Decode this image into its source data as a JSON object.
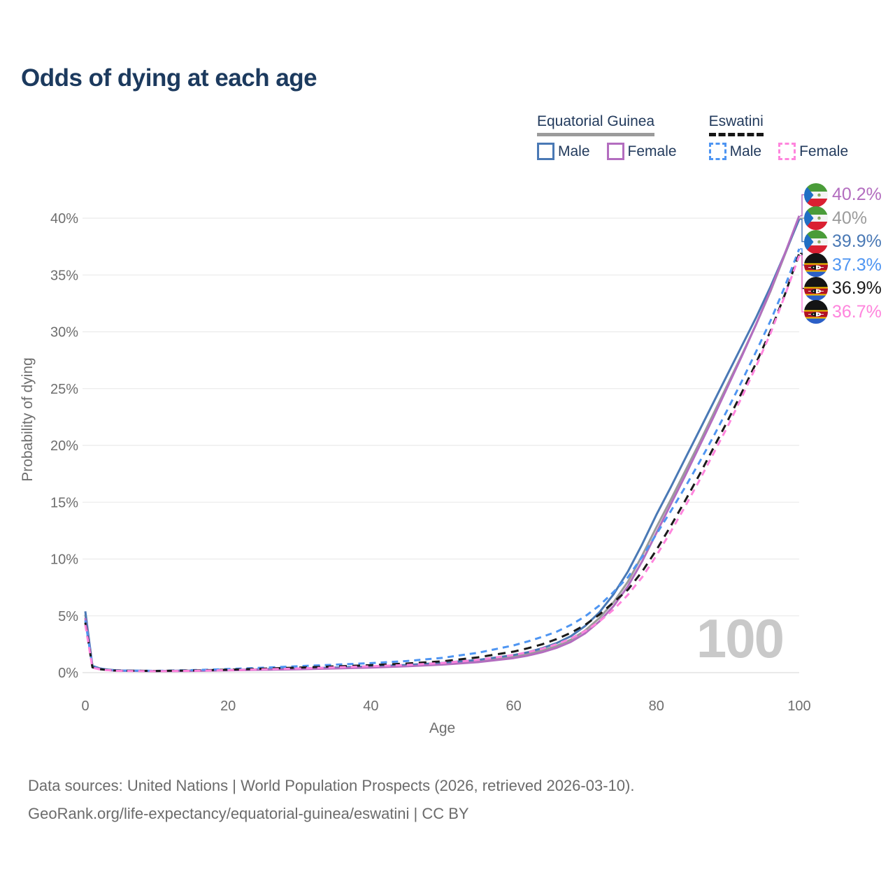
{
  "title": "Odds of dying at each age",
  "legend": {
    "groups": [
      {
        "name": "Equatorial Guinea",
        "line_style": "solid",
        "underline_color": "#9b9b9b",
        "items": [
          {
            "label": "Male",
            "color": "#4a79b5"
          },
          {
            "label": "Female",
            "color": "#b36dbf"
          }
        ]
      },
      {
        "name": "Eswatini",
        "line_style": "dashed",
        "underline_color": "#161616",
        "items": [
          {
            "label": "Male",
            "color": "#4e95f2"
          },
          {
            "label": "Female",
            "color": "#ff85dd"
          }
        ]
      }
    ]
  },
  "watermark": "100",
  "footer": {
    "line1": "Data sources: United Nations | World Population Prospects (2026, retrieved 2026-03-10).",
    "line2": "GeoRank.org/life-expectancy/equatorial-guinea/eswatini | CC BY"
  },
  "chart_data": {
    "type": "line",
    "title": "Odds of dying at each age",
    "xlabel": "Age",
    "ylabel": "Probability of dying",
    "xlim": [
      0,
      100
    ],
    "ylim_percent": [
      0,
      40
    ],
    "xticks": [
      0,
      20,
      40,
      60,
      80,
      100
    ],
    "ytick_values": [
      0,
      5,
      10,
      15,
      20,
      25,
      30,
      35,
      40
    ],
    "ytick_labels": [
      "0%",
      "5%",
      "10%",
      "15%",
      "20%",
      "25%",
      "30%",
      "35%",
      "40%"
    ],
    "grid": "horizontal",
    "legend_position": "top-right",
    "ages": [
      0,
      1,
      2,
      3,
      4,
      5,
      10,
      15,
      20,
      25,
      30,
      35,
      40,
      45,
      50,
      55,
      60,
      62,
      64,
      66,
      68,
      70,
      72,
      74,
      76,
      78,
      80,
      82,
      84,
      86,
      88,
      90,
      92,
      94,
      96,
      98,
      100
    ],
    "series": [
      {
        "key": "equatorial-guinea-female",
        "name": "Equatorial Guinea — Female",
        "country": "GQ",
        "style": "solid",
        "color": "#b36dbf",
        "end_label": "40.2%",
        "values_percent": [
          4.8,
          0.5,
          0.32,
          0.24,
          0.18,
          0.16,
          0.13,
          0.15,
          0.2,
          0.25,
          0.3,
          0.37,
          0.45,
          0.56,
          0.71,
          0.92,
          1.28,
          1.5,
          1.8,
          2.18,
          2.7,
          3.45,
          4.5,
          5.85,
          7.6,
          9.8,
          12.3,
          14.8,
          17.3,
          19.9,
          22.5,
          25.2,
          27.9,
          30.7,
          33.7,
          36.9,
          40.2
        ]
      },
      {
        "key": "equatorial-guinea-both",
        "name": "Equatorial Guinea — Both sexes",
        "country": "GQ",
        "style": "solid",
        "color": "#9b9b9b",
        "end_label": "40%",
        "values_percent": [
          5.1,
          0.55,
          0.35,
          0.26,
          0.2,
          0.17,
          0.14,
          0.17,
          0.22,
          0.28,
          0.34,
          0.41,
          0.5,
          0.62,
          0.78,
          1.0,
          1.4,
          1.63,
          1.95,
          2.35,
          2.9,
          3.7,
          4.8,
          6.2,
          8.0,
          10.3,
          12.8,
          15.2,
          17.7,
          20.2,
          22.8,
          25.4,
          28.0,
          30.7,
          33.6,
          36.8,
          40.0
        ]
      },
      {
        "key": "equatorial-guinea-male",
        "name": "Equatorial Guinea — Male",
        "country": "GQ",
        "style": "solid",
        "color": "#4a79b5",
        "end_label": "39.9%",
        "values_percent": [
          5.4,
          0.6,
          0.38,
          0.28,
          0.22,
          0.19,
          0.15,
          0.18,
          0.24,
          0.3,
          0.37,
          0.45,
          0.55,
          0.68,
          0.86,
          1.12,
          1.55,
          1.8,
          2.15,
          2.6,
          3.2,
          4.1,
          5.3,
          6.9,
          8.9,
          11.3,
          13.9,
          16.3,
          18.8,
          21.3,
          23.8,
          26.3,
          28.8,
          31.3,
          34.0,
          36.9,
          39.9
        ]
      },
      {
        "key": "eswatini-male",
        "name": "Eswatini — Male",
        "country": "SZ",
        "style": "dashed",
        "color": "#4e95f2",
        "end_label": "37.3%",
        "values_percent": [
          4.6,
          0.52,
          0.34,
          0.26,
          0.21,
          0.18,
          0.16,
          0.22,
          0.32,
          0.44,
          0.57,
          0.7,
          0.84,
          1.02,
          1.3,
          1.75,
          2.4,
          2.75,
          3.15,
          3.6,
          4.2,
          4.95,
          5.9,
          7.1,
          8.4,
          10.2,
          12.2,
          14.2,
          16.3,
          18.5,
          20.8,
          23.2,
          25.7,
          28.3,
          31.0,
          34.0,
          37.3
        ]
      },
      {
        "key": "eswatini-both",
        "name": "Eswatini — Both sexes",
        "country": "SZ",
        "style": "dashed",
        "color": "#1a1a1a",
        "end_label": "36.9%",
        "values_percent": [
          4.4,
          0.47,
          0.31,
          0.24,
          0.19,
          0.17,
          0.15,
          0.19,
          0.26,
          0.35,
          0.45,
          0.55,
          0.66,
          0.8,
          1.0,
          1.35,
          1.85,
          2.15,
          2.5,
          2.95,
          3.5,
          4.2,
          5.1,
          6.2,
          7.3,
          8.9,
          10.8,
          12.9,
          15.1,
          17.4,
          19.8,
          22.2,
          24.7,
          27.3,
          30.1,
          33.3,
          36.9
        ]
      },
      {
        "key": "eswatini-female",
        "name": "Eswatini — Female",
        "country": "SZ",
        "style": "dashed",
        "color": "#ff85dd",
        "end_label": "36.7%",
        "values_percent": [
          4.2,
          0.43,
          0.29,
          0.22,
          0.18,
          0.15,
          0.13,
          0.16,
          0.22,
          0.29,
          0.37,
          0.46,
          0.56,
          0.68,
          0.85,
          1.12,
          1.55,
          1.8,
          2.1,
          2.5,
          3.0,
          3.65,
          4.5,
          5.55,
          6.85,
          8.4,
          10.3,
          12.4,
          14.6,
          16.9,
          19.3,
          21.7,
          24.3,
          27.0,
          29.9,
          33.2,
          36.7
        ]
      }
    ]
  }
}
